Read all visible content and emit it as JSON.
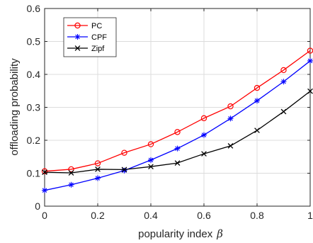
{
  "chart_data": {
    "type": "line",
    "xlabel": "popularity index",
    "xlabel_symbol": "β",
    "ylabel": "offloading probability",
    "xlim": [
      0,
      1
    ],
    "ylim": [
      0,
      0.6
    ],
    "xticks": [
      0,
      0.2,
      0.4,
      0.6,
      0.8,
      1
    ],
    "xtick_labels": [
      "0",
      "0.2",
      "0.4",
      "0.6",
      "0.8",
      "1"
    ],
    "yticks": [
      0,
      0.1,
      0.2,
      0.3,
      0.4,
      0.5,
      0.6
    ],
    "ytick_labels": [
      "0",
      "0.1",
      "0.2",
      "0.3",
      "0.4",
      "0.5",
      "0.6"
    ],
    "grid": true,
    "legend_position": "top-left",
    "x": [
      0,
      0.1,
      0.2,
      0.3,
      0.4,
      0.5,
      0.6,
      0.7,
      0.8,
      0.9,
      1.0
    ],
    "series": [
      {
        "name": "PC",
        "color": "#ff0000",
        "marker": "circle",
        "values": [
          0.106,
          0.112,
          0.13,
          0.162,
          0.188,
          0.225,
          0.267,
          0.303,
          0.359,
          0.413,
          0.472
        ]
      },
      {
        "name": "CPF",
        "color": "#0000ff",
        "marker": "asterisk",
        "values": [
          0.048,
          0.065,
          0.085,
          0.108,
          0.14,
          0.175,
          0.216,
          0.266,
          0.32,
          0.378,
          0.441
        ]
      },
      {
        "name": "Zipf",
        "color": "#000000",
        "marker": "cross",
        "values": [
          0.103,
          0.101,
          0.112,
          0.111,
          0.12,
          0.131,
          0.159,
          0.183,
          0.23,
          0.287,
          0.349
        ]
      }
    ]
  }
}
